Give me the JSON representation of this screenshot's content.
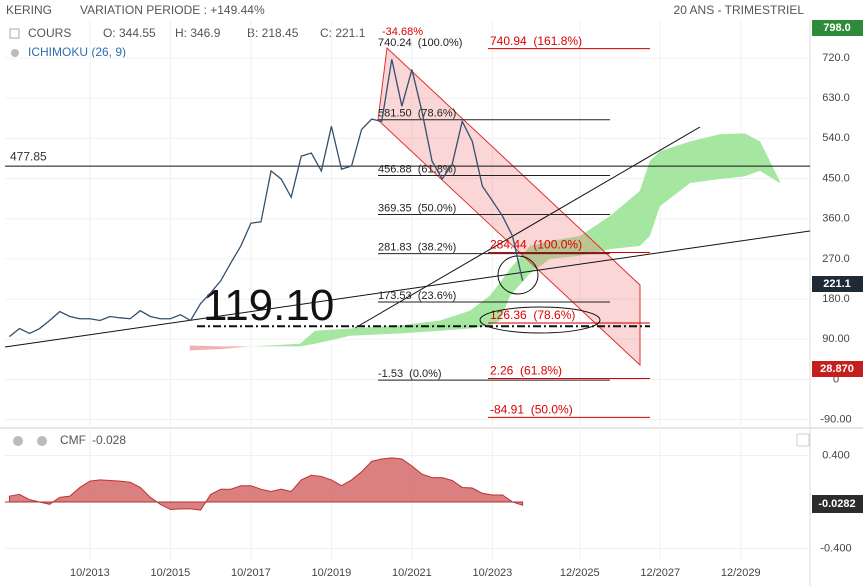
{
  "header": {
    "title": "KERING",
    "subtitle": "VARIATION PERIODE : +149.44%",
    "period": "20 ANS - TRIMESTRIEL",
    "legend": [
      "COURS",
      "ICHIMOKU (26, 9)"
    ],
    "ohlc": [
      "O: 344.55",
      "H: 346.9",
      "B: 218.45",
      "C: 221.1"
    ]
  },
  "chart_data": [
    {
      "type": "line",
      "xlim": [
        2011.64,
        2031.64
      ],
      "xticks": [
        {
          "value": 2013.75,
          "label": "10/2013"
        },
        {
          "value": 2015.75,
          "label": "10/2015"
        },
        {
          "value": 2017.75,
          "label": "10/2017"
        },
        {
          "value": 2019.75,
          "label": "10/2019"
        },
        {
          "value": 2021.75,
          "label": "10/2021"
        },
        {
          "value": 2023.75,
          "label": "10/2023"
        },
        {
          "value": 2025.92,
          "label": "12/2025"
        },
        {
          "value": 2027.92,
          "label": "12/2027"
        },
        {
          "value": 2029.92,
          "label": "12/2029"
        }
      ],
      "ylim": [
        -102,
        805
      ],
      "yticks": [
        {
          "value": 720,
          "label": "720.0"
        },
        {
          "value": 630,
          "label": "630.0"
        },
        {
          "value": 540,
          "label": "540.0"
        },
        {
          "value": 450,
          "label": "450.0"
        },
        {
          "value": 360,
          "label": "360.0"
        },
        {
          "value": 270,
          "label": "270.0"
        },
        {
          "value": 180,
          "label": "180.0"
        },
        {
          "value": 90,
          "label": "90.00"
        },
        0,
        {
          "value": -90,
          "label": "-90.00"
        }
      ],
      "grid": true,
      "series": [
        {
          "name": "COURS",
          "color": "#34506e",
          "x": [
            2011.75,
            2012.0,
            2012.25,
            2012.5,
            2012.75,
            2013.0,
            2013.25,
            2013.5,
            2013.75,
            2014.0,
            2014.25,
            2014.5,
            2014.75,
            2015.0,
            2015.25,
            2015.5,
            2015.75,
            2016.0,
            2016.25,
            2016.5,
            2016.75,
            2017.0,
            2017.25,
            2017.5,
            2017.75,
            2018.0,
            2018.25,
            2018.5,
            2018.75,
            2019.0,
            2019.25,
            2019.5,
            2019.75,
            2020.0,
            2020.25,
            2020.5,
            2020.75,
            2021.0,
            2021.25,
            2021.5,
            2021.75,
            2022.0,
            2022.25,
            2022.5,
            2022.75,
            2023.0,
            2023.25,
            2023.5,
            2023.75,
            2024.0,
            2024.25,
            2024.5
          ],
          "values": [
            96,
            114,
            103,
            114,
            132,
            152,
            141,
            136,
            136,
            132,
            141,
            138,
            136,
            154,
            141,
            136,
            136,
            145,
            132,
            170,
            194,
            221,
            261,
            299,
            350,
            353,
            467,
            449,
            408,
            500,
            507,
            467,
            567,
            471,
            478,
            560,
            583,
            578,
            717,
            612,
            694,
            600,
            489,
            449,
            482,
            578,
            533,
            433,
            400,
            366,
            321,
            221.1
          ]
        }
      ],
      "ichimoku": {
        "name": "ICHIMOKU (26, 9)",
        "segments": [
          {
            "color": "#f4b0b0",
            "x": [
              2016.23,
              2017.0,
              2017.73
            ],
            "upper": [
              76,
              74,
              74
            ],
            "lower": [
              65,
              68,
              74
            ]
          },
          {
            "color": "#a5e6a0",
            "x": [
              2017.73,
              2018.97,
              2019.34,
              2020.21,
              2021.45,
              2022.45,
              2023.19,
              2023.69,
              2023.94,
              2024.19,
              2024.68,
              2025.18,
              2025.92,
              2026.67,
              2027.41,
              2027.66,
              2027.91,
              2028.66,
              2029.4,
              2030.02,
              2030.4,
              2030.89
            ],
            "upper": [
              74,
              80,
              109,
              114,
              121,
              132,
              154,
              188,
              217,
              248,
              299,
              310,
              321,
              366,
              422,
              489,
              511,
              533,
              549,
              551,
              533,
              444
            ],
            "lower": [
              74,
              74,
              80,
              98,
              103,
              109,
              114,
              121,
              132,
              188,
              237,
              270,
              277,
              292,
              299,
              321,
              388,
              440,
              449,
              455,
              467,
              440
            ]
          }
        ]
      },
      "change_label": "-34.68%",
      "level_line": 477.85,
      "big_level": {
        "value": 119.1,
        "label": "119.10"
      },
      "fib_left": [
        {
          "value": 740.24,
          "label": "740.24  (100.0%)"
        },
        {
          "value": 581.5,
          "label": "581.50  (78.6%)"
        },
        {
          "value": 456.88,
          "label": "456.88  (61.8%)"
        },
        {
          "value": 369.35,
          "label": "369.35  (50.0%)"
        },
        {
          "value": 281.83,
          "label": "281.83  (38.2%)"
        },
        {
          "value": 173.53,
          "label": "173.53  (23.6%)"
        },
        {
          "value": -1.53,
          "label": "-1.53  (0.0%)"
        }
      ],
      "fib_right": [
        {
          "value": 740.94,
          "label": "740.94  (161.8%)"
        },
        {
          "value": 284.44,
          "label": "284.44  (100.0%)"
        },
        {
          "value": 126.36,
          "label": "126.36  (78.6%)"
        },
        {
          "value": 2.26,
          "label": "2.26  (61.8%)"
        },
        {
          "value": -84.91,
          "label": "-84.91  (50.0%)"
        }
      ],
      "badges": [
        "798.0",
        "221.1",
        "28.870"
      ]
    },
    {
      "type": "area",
      "title": "CMF",
      "last_label": "-0.028",
      "badge": "-0.0282",
      "color": "#d46a6a",
      "ylim": [
        -0.5,
        0.62
      ],
      "yticks": [
        {
          "value": 0.4,
          "label": "0.400"
        },
        {
          "value": -0.4,
          "label": "-0.400"
        }
      ],
      "values": [
        0.05,
        0.065,
        0.02,
        0,
        -0.02,
        0.04,
        0.05,
        0.125,
        0.18,
        0.19,
        0.185,
        0.18,
        0.17,
        0.125,
        0.04,
        -0.02,
        -0.065,
        -0.06,
        -0.06,
        -0.07,
        0.065,
        0.11,
        0.11,
        0.14,
        0.14,
        0.11,
        0.09,
        0.11,
        0.09,
        0.19,
        0.23,
        0.22,
        0.19,
        0.14,
        0.19,
        0.26,
        0.35,
        0.37,
        0.38,
        0.37,
        0.31,
        0.24,
        0.21,
        0.21,
        0.185,
        0.125,
        0.12,
        0.075,
        0.06,
        0.06,
        0,
        -0.0282
      ]
    }
  ]
}
